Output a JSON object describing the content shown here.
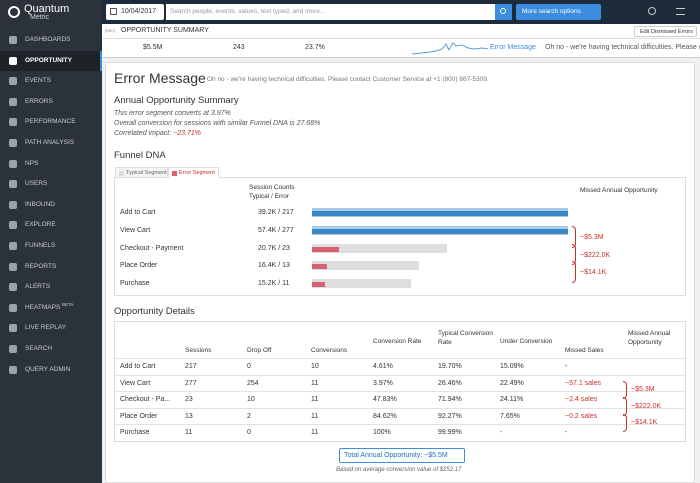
{
  "header": {
    "logo_line1": "Quantum",
    "logo_line2": "Metric",
    "date": "10/04/2017",
    "search_placeholder": "Search people, events, values, text typed, and more...",
    "more_options": "More search options"
  },
  "sidebar": {
    "items": [
      {
        "label": "DASHBOARDS"
      },
      {
        "label": "OPPORTUNITY",
        "active": true
      },
      {
        "label": "EVENTS"
      },
      {
        "label": "ERRORS"
      },
      {
        "label": "PERFORMANCE"
      },
      {
        "label": "PATH ANALYSIS"
      },
      {
        "label": "NPS"
      },
      {
        "label": "USERS"
      },
      {
        "label": "INBOUND"
      },
      {
        "label": "EXPLORE"
      },
      {
        "label": "FUNNELS"
      },
      {
        "label": "REPORTS"
      },
      {
        "label": "ALERTS"
      },
      {
        "label": "HEATMAPS",
        "badge": "BETA"
      },
      {
        "label": "LIVE REPLAY"
      },
      {
        "label": "SEARCH"
      },
      {
        "label": "QUERY ADMIN"
      }
    ]
  },
  "subheader": {
    "esc": "(esc)",
    "title": "OPPORTUNITY SUMMARY",
    "edit": "Edit Dismissed Errors"
  },
  "summary_row": {
    "opportunity": "$5.5M",
    "sessions": "243",
    "rate": "23.7%",
    "link": "Error Message",
    "message": "Oh no - we're having technical difficulties. Please cont..."
  },
  "error": {
    "title": "Error Message",
    "subtitle": "- Oh no - we're having technical difficulties. Please contact Customer Service at +1 (800) 867-5309."
  },
  "annual": {
    "heading": "Annual Opportunity Summary",
    "lines": [
      "This error segment converts at 3.97%",
      "Overall conversion for sessions with similar Funnel DNA is 27.68%"
    ],
    "impact_label": "Correlated impact: ",
    "impact_value": "~23.71%"
  },
  "funnel": {
    "heading": "Funnel DNA",
    "legend": [
      "Typical Segment",
      "Error Segment"
    ],
    "col_sessions": [
      "Session Counts",
      "Typical / Error"
    ],
    "col_missed": "Missed Annual Opportunity",
    "separator": " / ",
    "rows": [
      {
        "step": "Add to Cart",
        "typical": {
          "value": 39200,
          "label": "39.2K"
        },
        "error": 217,
        "baseline": true
      },
      {
        "step": "View Cart",
        "typical": {
          "value": 57400,
          "label": "57.4K"
        },
        "error": 277,
        "baseline": true
      },
      {
        "step": "Checkout - Payment",
        "typical": {
          "value": 20700,
          "label": "20.7K"
        },
        "error": 23
      },
      {
        "step": "Place Order",
        "typical": {
          "value": 16400,
          "label": "16.4K"
        },
        "error": 13
      },
      {
        "step": "Purchase",
        "typical": {
          "value": 15200,
          "label": "15.2K"
        },
        "error": 11
      }
    ],
    "missed": [
      "~$5.3M",
      "~$222.0K",
      "~$14.1K"
    ]
  },
  "details": {
    "heading": "Opportunity Details",
    "columns": [
      "",
      "Sessions",
      "Drop Off",
      "Conversions",
      "Conversion Rate",
      "Typical Conversion Rate",
      "Under Conversion",
      "Missed Sales",
      "Missed Annual Opportunity"
    ],
    "rows": [
      [
        "Add to Cart",
        217,
        0,
        10,
        "4.61%",
        "19.70%",
        "15.09%",
        "-"
      ],
      [
        "View Cart",
        277,
        254,
        11,
        "3.97%",
        "26.46%",
        "22.49%",
        "~57.1 sales"
      ],
      [
        "Checkout - Pa...",
        23,
        10,
        11,
        "47.83%",
        "71.94%",
        "24.11%",
        "~2.4 sales"
      ],
      [
        "Place Order",
        13,
        2,
        11,
        "84.62%",
        "92.27%",
        "7.65%",
        "~0.2 sales"
      ],
      [
        "Purchase",
        11,
        0,
        11,
        "100%",
        "99.99%",
        "-",
        "-"
      ]
    ],
    "missed": [
      "~$5.3M",
      "~$222.0K",
      "~$14.1K"
    ]
  },
  "total": {
    "button": "Total Annual Opportunity: ~$5.5M",
    "note": "Based on average conversion value of $252.17"
  }
}
